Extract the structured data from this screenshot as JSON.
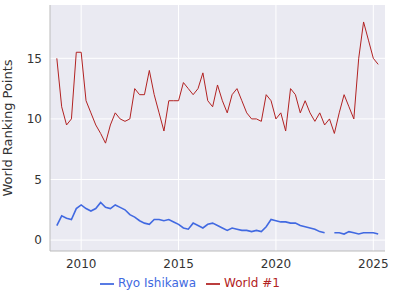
{
  "chart_data": {
    "type": "line",
    "y_label": "World Ranking Points",
    "x": [
      2008.75,
      2009.0,
      2009.25,
      2009.5,
      2009.75,
      2010.0,
      2010.25,
      2010.5,
      2010.75,
      2011.0,
      2011.25,
      2011.5,
      2011.75,
      2012.0,
      2012.25,
      2012.5,
      2012.75,
      2013.0,
      2013.25,
      2013.5,
      2013.75,
      2014.0,
      2014.25,
      2014.5,
      2014.75,
      2015.0,
      2015.25,
      2015.5,
      2015.75,
      2016.0,
      2016.25,
      2016.5,
      2016.75,
      2017.0,
      2017.25,
      2017.5,
      2017.75,
      2018.0,
      2018.25,
      2018.5,
      2018.75,
      2019.0,
      2019.25,
      2019.5,
      2019.75,
      2020.0,
      2020.25,
      2020.5,
      2020.75,
      2021.0,
      2021.25,
      2021.5,
      2021.75,
      2022.0,
      2022.25,
      2022.5,
      2022.75,
      2023.0,
      2023.25,
      2023.5,
      2023.75,
      2024.0,
      2024.25,
      2024.5,
      2024.75,
      2025.0,
      2025.25
    ],
    "series": [
      {
        "name": "Ryo Ishikawa",
        "color": "#4169e1",
        "line_style": "solid",
        "values": [
          1.2,
          2.0,
          1.8,
          1.7,
          2.6,
          2.9,
          2.6,
          2.4,
          2.6,
          3.1,
          2.7,
          2.6,
          2.9,
          2.7,
          2.5,
          2.1,
          1.9,
          1.6,
          1.4,
          1.3,
          1.7,
          1.7,
          1.6,
          1.7,
          1.5,
          1.3,
          1.0,
          0.9,
          1.4,
          1.2,
          1.0,
          1.3,
          1.4,
          1.2,
          1.0,
          0.8,
          1.0,
          0.9,
          0.8,
          0.8,
          0.7,
          0.8,
          0.7,
          1.1,
          1.7,
          1.6,
          1.5,
          1.5,
          1.4,
          1.4,
          1.2,
          1.1,
          1.0,
          0.9,
          0.7,
          0.6,
          null,
          0.6,
          0.6,
          0.5,
          0.7,
          0.6,
          0.5,
          0.6,
          0.6,
          0.6,
          0.5
        ]
      },
      {
        "name": "World #1",
        "color": "#b22222",
        "line_style": "solid",
        "values": [
          15,
          11,
          9.5,
          10,
          15.5,
          15.5,
          11.5,
          10.5,
          9.5,
          8.8,
          8,
          9.5,
          10.5,
          10,
          9.8,
          10,
          12.5,
          12,
          12,
          14,
          12,
          10.5,
          9,
          11.5,
          11.5,
          11.5,
          13,
          12.5,
          12,
          12.5,
          13.8,
          11.5,
          11,
          12.8,
          11.5,
          10.5,
          12,
          12.5,
          11.5,
          10.5,
          10,
          10,
          9.8,
          12,
          11.5,
          10,
          10.5,
          9,
          12.5,
          12,
          10.5,
          11.5,
          10.5,
          9.8,
          10.5,
          9.5,
          10,
          8.8,
          10.5,
          12,
          11,
          10,
          15,
          18,
          16.5,
          15,
          14.5
        ]
      }
    ],
    "xlim": [
      2008.4,
      2025.6
    ],
    "xticks": [
      2010,
      2015,
      2020,
      2025
    ],
    "ylim": [
      -0.9,
      19.4
    ],
    "yticks": [
      0,
      5,
      10,
      15
    ],
    "grid": true,
    "legend": "bottom"
  }
}
